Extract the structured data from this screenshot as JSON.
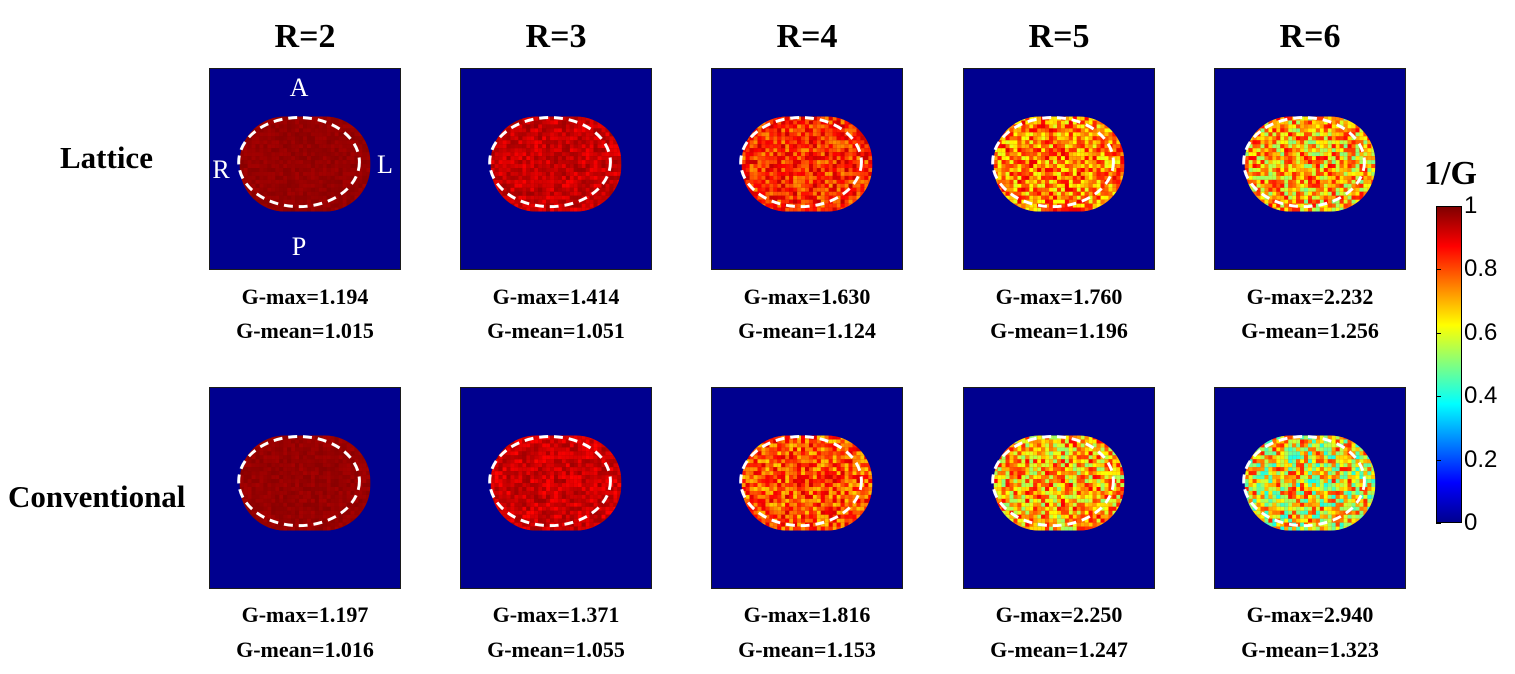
{
  "columns": [
    "R=2",
    "R=3",
    "R=4",
    "R=5",
    "R=6"
  ],
  "rows": [
    {
      "label": "Lattice",
      "panels": [
        {
          "g_max": "G-max=1.194",
          "g_mean": "G-mean=1.015",
          "inv_g_mean": 0.985
        },
        {
          "g_max": "G-max=1.414",
          "g_mean": "G-mean=1.051",
          "inv_g_mean": 0.951
        },
        {
          "g_max": "G-max=1.630",
          "g_mean": "G-mean=1.124",
          "inv_g_mean": 0.89
        },
        {
          "g_max": "G-max=1.760",
          "g_mean": "G-mean=1.196",
          "inv_g_mean": 0.836
        },
        {
          "g_max": "G-max=2.232",
          "g_mean": "G-mean=1.256",
          "inv_g_mean": 0.796
        }
      ]
    },
    {
      "label": "Conventional",
      "panels": [
        {
          "g_max": "G-max=1.197",
          "g_mean": "G-mean=1.016",
          "inv_g_mean": 0.984
        },
        {
          "g_max": "G-max=1.371",
          "g_mean": "G-mean=1.055",
          "inv_g_mean": 0.948
        },
        {
          "g_max": "G-max=1.816",
          "g_mean": "G-mean=1.153",
          "inv_g_mean": 0.867
        },
        {
          "g_max": "G-max=2.250",
          "g_mean": "G-mean=1.247",
          "inv_g_mean": 0.802
        },
        {
          "g_max": "G-max=2.940",
          "g_mean": "G-mean=1.323",
          "inv_g_mean": 0.756
        }
      ]
    }
  ],
  "orientation": {
    "anterior": "A",
    "posterior": "P",
    "right": "R",
    "left": "L"
  },
  "colorbar": {
    "title": "1/G",
    "ticks": [
      "0",
      "0.2",
      "0.4",
      "0.6",
      "0.8",
      "1"
    ],
    "range": [
      0,
      1
    ],
    "colormap": "jet"
  },
  "colors": {
    "background": "#00008f",
    "dashed_outline": "#ffffff"
  }
}
